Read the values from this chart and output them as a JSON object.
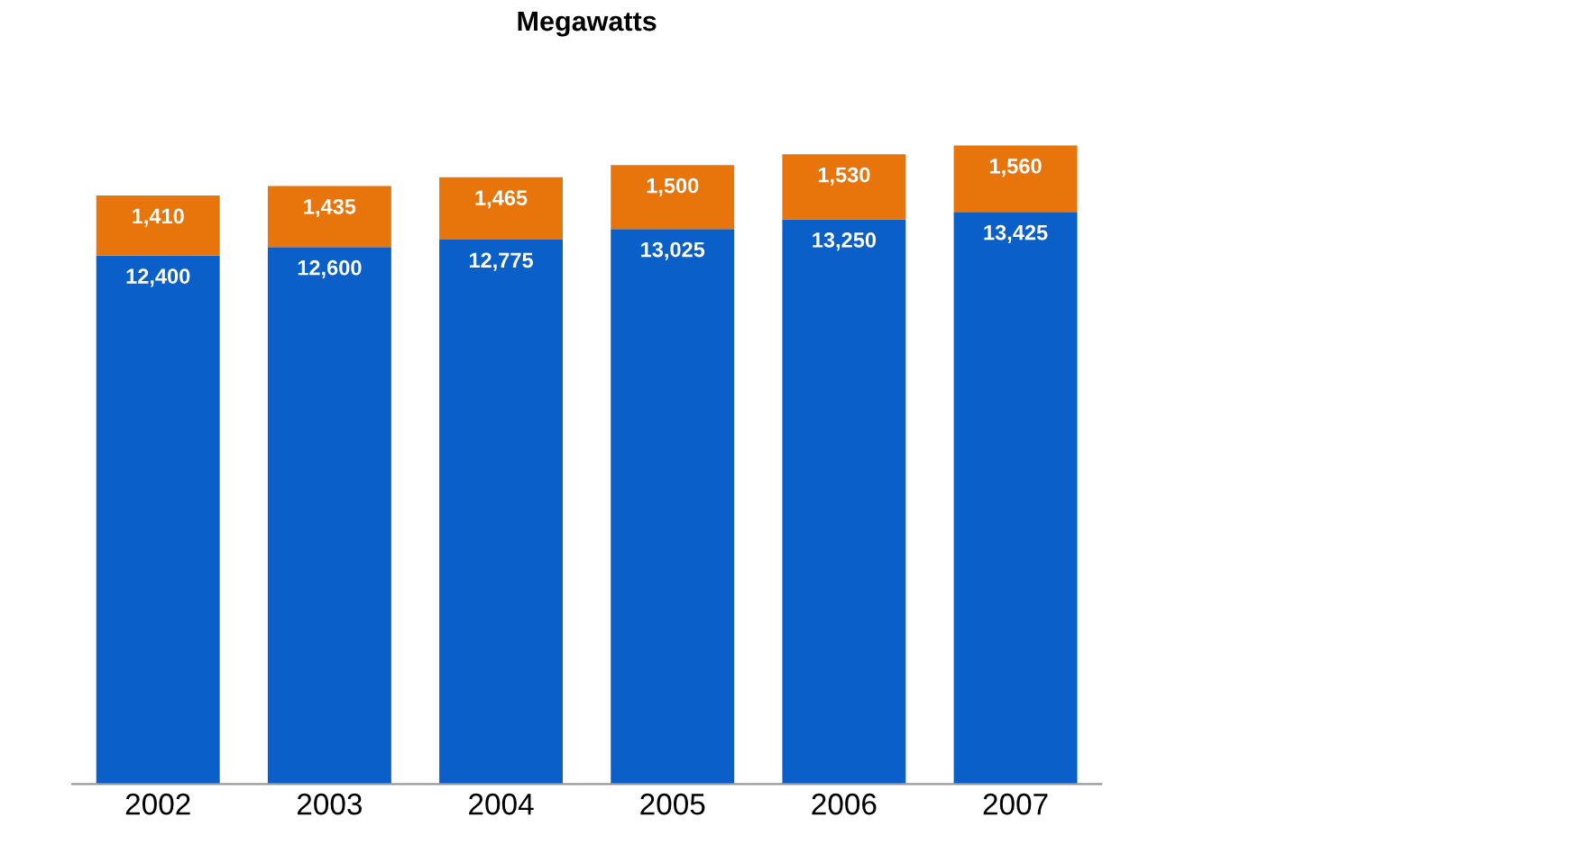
{
  "chart_data": {
    "type": "bar",
    "title": "Megawatts",
    "stacked": true,
    "categories": [
      "2002",
      "2003",
      "2004",
      "2005",
      "2006",
      "2007"
    ],
    "series": [
      {
        "color": "#0a5fc8",
        "values": [
          12400,
          12600,
          12775,
          13025,
          13250,
          13425
        ],
        "value_labels": [
          "12,400",
          "12,600",
          "12,775",
          "13,025",
          "13,250",
          "13,425"
        ]
      },
      {
        "color": "#e8740c",
        "values": [
          1410,
          1435,
          1465,
          1500,
          1530,
          1560
        ],
        "value_labels": [
          "1,410",
          "1,435",
          "1,465",
          "1,500",
          "1,530",
          "1,560"
        ]
      }
    ],
    "tick_labels": "x",
    "grid": false,
    "legend": false
  }
}
